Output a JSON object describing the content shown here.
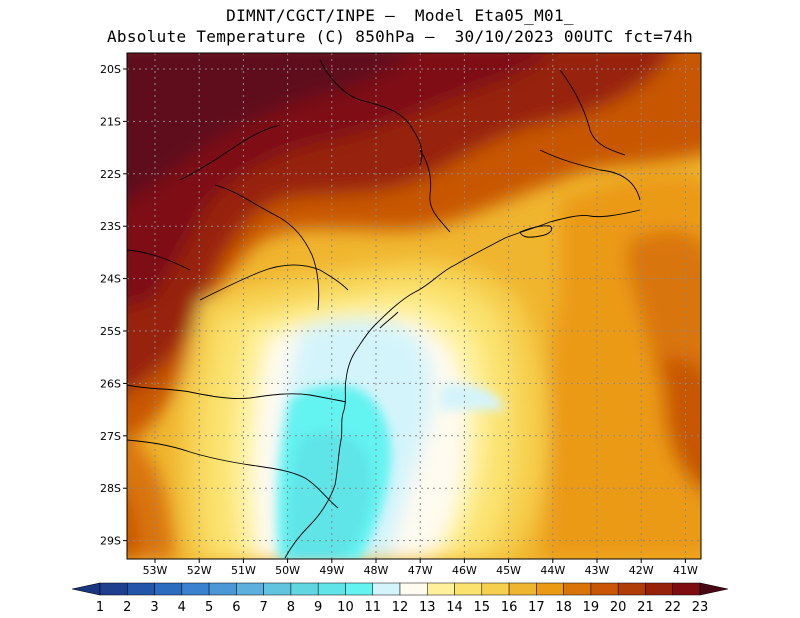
{
  "title_line1": "DIMNT/CGCT/INPE —  Model Eta05_M01_",
  "title_line2": "Absolute Temperature (C) 850hPa —  30/10/2023 00UTC fct=74h",
  "lat_labels": [
    "20S",
    "21S",
    "22S",
    "23S",
    "24S",
    "25S",
    "26S",
    "27S",
    "28S",
    "29S"
  ],
  "lon_labels": [
    "53W",
    "52W",
    "51W",
    "50W",
    "49W",
    "48W",
    "47W",
    "46W",
    "45W",
    "44W",
    "43W",
    "42W",
    "41W"
  ],
  "colorbar": {
    "labels": [
      "1",
      "2",
      "3",
      "4",
      "5",
      "6",
      "7",
      "8",
      "9",
      "10",
      "11",
      "12",
      "13",
      "14",
      "15",
      "16",
      "17",
      "18",
      "19",
      "20",
      "21",
      "22",
      "23"
    ],
    "colors": [
      "#1d3f8e",
      "#2356a8",
      "#2b6cbf",
      "#3a82cf",
      "#4c98d6",
      "#5db0de",
      "#62c4df",
      "#5fd6e0",
      "#5fe4e8",
      "#64f3f1",
      "#d4f4fb",
      "#fffbf0",
      "#fff19c",
      "#fbe26e",
      "#f6cf4e",
      "#f0b52e",
      "#eb9a14",
      "#d97408",
      "#c85606",
      "#b03c06",
      "#972208",
      "#7e0d12",
      "#5e0a1a"
    ],
    "under_color": "#1a3581",
    "over_color": "#4a0714"
  }
}
